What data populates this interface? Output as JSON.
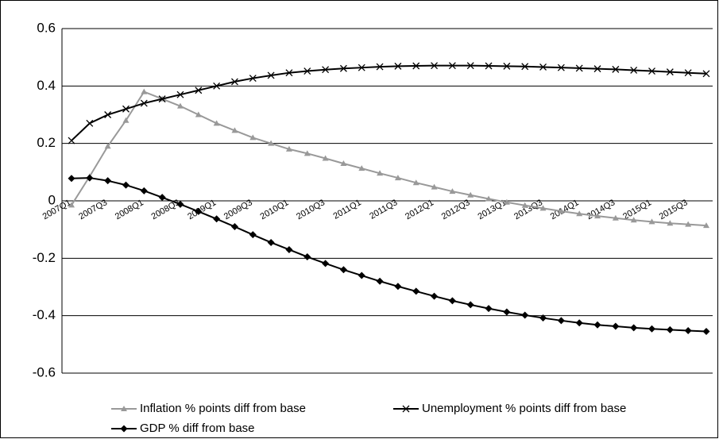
{
  "chart_data": {
    "type": "line",
    "categories": [
      "2007Q1",
      null,
      "2007Q3",
      null,
      "2008Q1",
      null,
      "2008Q3",
      null,
      "2009Q1",
      null,
      "2009Q3",
      null,
      "2010Q1",
      null,
      "2010Q3",
      null,
      "2011Q1",
      null,
      "2011Q3",
      null,
      "2012Q1",
      null,
      "2012Q3",
      null,
      "2013Q1",
      null,
      "2013Q3",
      null,
      "2014Q1",
      null,
      "2014Q3",
      null,
      "2015Q1",
      null,
      "2015Q3",
      null
    ],
    "series": [
      {
        "name": "Inflation % points diff from base",
        "color": "#999999",
        "marker": "triangle",
        "values": [
          -0.015,
          0.085,
          0.19,
          0.28,
          0.38,
          0.355,
          0.33,
          0.3,
          0.27,
          0.245,
          0.22,
          0.2,
          0.18,
          0.165,
          0.148,
          0.13,
          0.113,
          0.096,
          0.08,
          0.063,
          0.048,
          0.033,
          0.02,
          0.007,
          -0.005,
          -0.016,
          -0.026,
          -0.036,
          -0.045,
          -0.053,
          -0.06,
          -0.067,
          -0.073,
          -0.078,
          -0.082,
          -0.086
        ]
      },
      {
        "name": "Unemployment % points diff from base",
        "color": "#000000",
        "marker": "x",
        "values": [
          0.21,
          0.27,
          0.3,
          0.32,
          0.34,
          0.355,
          0.37,
          0.385,
          0.4,
          0.415,
          0.427,
          0.437,
          0.446,
          0.452,
          0.457,
          0.461,
          0.464,
          0.467,
          0.469,
          0.47,
          0.471,
          0.471,
          0.471,
          0.47,
          0.469,
          0.468,
          0.466,
          0.464,
          0.462,
          0.46,
          0.458,
          0.455,
          0.452,
          0.449,
          0.446,
          0.443
        ]
      },
      {
        "name": "GDP % diff from base",
        "color": "#000000",
        "marker": "diamond",
        "values": [
          0.078,
          0.08,
          0.07,
          0.055,
          0.035,
          0.012,
          -0.012,
          -0.037,
          -0.063,
          -0.09,
          -0.118,
          -0.145,
          -0.17,
          -0.195,
          -0.218,
          -0.24,
          -0.26,
          -0.28,
          -0.298,
          -0.315,
          -0.332,
          -0.348,
          -0.362,
          -0.375,
          -0.387,
          -0.398,
          -0.408,
          -0.417,
          -0.425,
          -0.432,
          -0.437,
          -0.442,
          -0.446,
          -0.449,
          -0.452,
          -0.455
        ]
      }
    ],
    "ylim": [
      -0.6,
      0.6
    ],
    "yticks": [
      0.6,
      0.4,
      0.2,
      0,
      -0.2,
      -0.4,
      -0.6
    ],
    "grid": true,
    "legend": "bottom"
  }
}
